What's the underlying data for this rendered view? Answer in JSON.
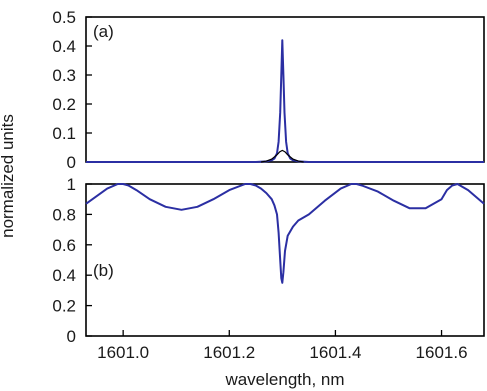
{
  "chart_data": [
    {
      "type": "line",
      "panel_label": "(a)",
      "ylabel": "normalized units",
      "xlim": [
        1600.93,
        1601.68
      ],
      "ylim": [
        0,
        0.5
      ],
      "yticks": [
        "0",
        "0.1",
        "0.2",
        "0.3",
        "0.4",
        "0.5"
      ],
      "grid": false,
      "series": [
        {
          "color": "#2b2fa3",
          "x": [
            1600.93,
            1601.25,
            1601.27,
            1601.28,
            1601.285,
            1601.29,
            1601.293,
            1601.296,
            1601.298,
            1601.3,
            1601.302,
            1601.304,
            1601.307,
            1601.31,
            1601.315,
            1601.32,
            1601.33,
            1601.35,
            1601.68
          ],
          "y": [
            0,
            0,
            0.002,
            0.006,
            0.012,
            0.03,
            0.07,
            0.17,
            0.3,
            0.42,
            0.3,
            0.17,
            0.07,
            0.03,
            0.012,
            0.006,
            0.002,
            0,
            0
          ]
        },
        {
          "color": "#000000",
          "x": [
            1601.26,
            1601.27,
            1601.28,
            1601.29,
            1601.295,
            1601.3,
            1601.305,
            1601.31,
            1601.32,
            1601.33,
            1601.34
          ],
          "y": [
            0,
            0.003,
            0.01,
            0.025,
            0.035,
            0.04,
            0.035,
            0.025,
            0.01,
            0.003,
            0
          ]
        }
      ]
    },
    {
      "type": "line",
      "panel_label": "(b)",
      "xlabel": "wavelength, nm",
      "ylabel": "normalized units",
      "xlim": [
        1600.93,
        1601.68
      ],
      "ylim": [
        0,
        1
      ],
      "xticks": [
        "1601.0",
        "1601.2",
        "1601.4",
        "1601.6"
      ],
      "yticks": [
        "0",
        "0.2",
        "0.4",
        "0.6",
        "0.8",
        "1"
      ],
      "grid": false,
      "series": [
        {
          "color": "#2b2fa3",
          "x": [
            1600.93,
            1600.95,
            1600.97,
            1600.99,
            1601.0,
            1601.01,
            1601.025,
            1601.05,
            1601.08,
            1601.11,
            1601.14,
            1601.17,
            1601.2,
            1601.23,
            1601.24,
            1601.25,
            1601.26,
            1601.27,
            1601.28,
            1601.285,
            1601.29,
            1601.293,
            1601.296,
            1601.298,
            1601.3,
            1601.302,
            1601.305,
            1601.31,
            1601.32,
            1601.33,
            1601.35,
            1601.38,
            1601.41,
            1601.43,
            1601.44,
            1601.45,
            1601.48,
            1601.51,
            1601.54,
            1601.57,
            1601.6,
            1601.61,
            1601.62,
            1601.63,
            1601.65,
            1601.68
          ],
          "y": [
            0.87,
            0.92,
            0.97,
            1.0,
            1.0,
            0.99,
            0.96,
            0.9,
            0.85,
            0.83,
            0.85,
            0.9,
            0.96,
            1.0,
            1.0,
            0.99,
            0.97,
            0.94,
            0.9,
            0.86,
            0.8,
            0.68,
            0.5,
            0.38,
            0.35,
            0.42,
            0.56,
            0.66,
            0.72,
            0.76,
            0.8,
            0.89,
            0.97,
            1.0,
            1.0,
            0.99,
            0.95,
            0.89,
            0.84,
            0.84,
            0.9,
            0.96,
            0.99,
            1.0,
            0.96,
            0.87
          ]
        }
      ]
    }
  ]
}
